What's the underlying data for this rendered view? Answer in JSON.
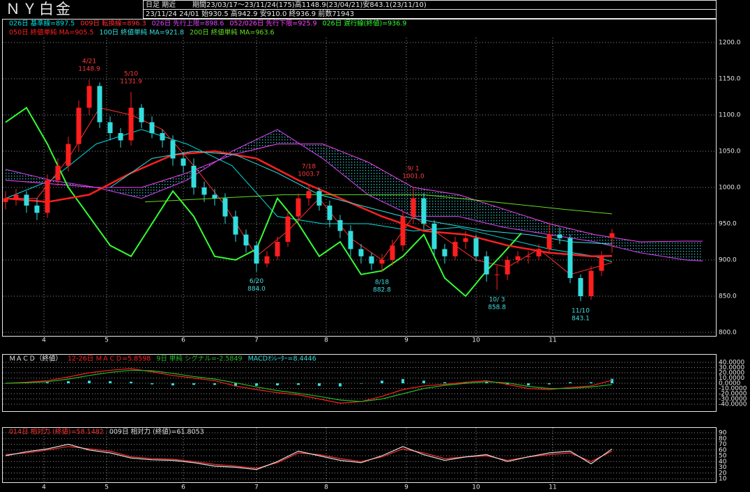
{
  "header": {
    "title": "ＮＹ白金",
    "line1a": "日足 期近",
    "line1b": "期間23/03/17～23/11/24(175)高1148.9(23/04/21)安843.1(23/11/10)",
    "line2": "23/11/24 24/01 始930.5 高942.9 安910.0 終936.9 前数71943"
  },
  "chart_data": [
    {
      "type": "candlestick",
      "x": [
        0,
        3,
        6,
        9,
        12,
        15,
        18,
        21,
        24,
        27,
        30,
        33,
        36,
        39,
        42,
        45,
        48,
        51,
        54,
        57,
        60,
        63,
        66,
        69,
        72,
        75,
        78,
        81,
        84,
        87,
        90,
        93,
        96,
        99,
        102,
        105,
        108,
        111,
        114,
        117,
        120,
        123,
        126,
        129,
        132,
        135,
        138,
        141,
        144,
        147,
        150,
        153,
        156,
        159,
        162,
        165,
        168,
        171,
        174
      ],
      "open": [
        980,
        985,
        990,
        975,
        965,
        1010,
        1030,
        1060,
        1110,
        1140,
        1090,
        1075,
        1065,
        1110,
        1090,
        1075,
        1065,
        1040,
        1030,
        1000,
        990,
        985,
        960,
        935,
        920,
        895,
        905,
        925,
        960,
        985,
        995,
        975,
        955,
        940,
        915,
        905,
        895,
        900,
        920,
        960,
        985,
        950,
        915,
        905,
        925,
        930,
        905,
        880,
        880,
        900,
        905,
        905,
        915,
        935,
        930,
        875,
        850,
        885,
        930.5
      ],
      "high": [
        995,
        998,
        995,
        985,
        1018,
        1040,
        1070,
        1120,
        1148.9,
        1145,
        1098,
        1082,
        1131.9,
        1115,
        1098,
        1080,
        1072,
        1048,
        1040,
        1008,
        998,
        992,
        968,
        942,
        926,
        912,
        932,
        968,
        992,
        1003.7,
        1000,
        982,
        962,
        948,
        922,
        910,
        908,
        928,
        968,
        1001.0,
        992,
        955,
        922,
        932,
        940,
        935,
        912,
        892,
        905,
        912,
        912,
        922,
        951.8,
        945,
        935,
        880,
        892,
        912,
        942.9
      ],
      "low": [
        970,
        975,
        965,
        955,
        958,
        1002,
        1022,
        1050,
        1100,
        1082,
        1065,
        1055,
        1058,
        1082,
        1068,
        1055,
        1030,
        1020,
        990,
        980,
        975,
        950,
        925,
        910,
        884.0,
        890,
        900,
        918,
        952,
        975,
        968,
        945,
        930,
        905,
        895,
        886,
        882.8,
        892,
        912,
        950,
        942,
        905,
        895,
        900,
        915,
        898,
        870,
        858.8,
        872,
        895,
        895,
        900,
        908,
        922,
        868,
        843.1,
        845,
        878,
        910.0
      ],
      "close": [
        985,
        990,
        975,
        965,
        1010,
        1030,
        1060,
        1110,
        1140,
        1090,
        1075,
        1065,
        1110,
        1090,
        1075,
        1065,
        1040,
        1030,
        1000,
        990,
        985,
        960,
        935,
        920,
        895,
        905,
        925,
        960,
        985,
        995,
        975,
        955,
        940,
        915,
        905,
        895,
        900,
        920,
        960,
        985,
        950,
        915,
        905,
        925,
        930,
        905,
        880,
        880,
        900,
        905,
        905,
        915,
        935,
        930,
        875,
        850,
        885,
        905,
        936.9
      ],
      "up_color": "#ff1e1e",
      "down_color": "#33dddd",
      "xlim": [
        0,
        204
      ],
      "ylim": [
        800,
        1200
      ],
      "yticks": [
        {
          "value": 1200,
          "label": "1200.0"
        },
        {
          "value": 1150,
          "label": "1150.0"
        },
        {
          "value": 1100,
          "label": "1100.0"
        },
        {
          "value": 1050,
          "label": "1050.0"
        },
        {
          "value": 1000,
          "label": "1000.0"
        },
        {
          "value": 950,
          "label": "950.0"
        },
        {
          "value": 900,
          "label": "900.0"
        },
        {
          "value": 850,
          "label": "850.0"
        },
        {
          "value": 800,
          "label": "800.0"
        }
      ],
      "xticks": [
        {
          "value": 11,
          "label": "4"
        },
        {
          "value": 29,
          "label": "5"
        },
        {
          "value": 51,
          "label": "6"
        },
        {
          "value": 72,
          "label": "7"
        },
        {
          "value": 92,
          "label": "8"
        },
        {
          "value": 115,
          "label": "9"
        },
        {
          "value": 135,
          "label": "10"
        },
        {
          "value": 157,
          "label": "11"
        }
      ],
      "grid": true,
      "cloud_color": "#33cccc",
      "series": [
        {
          "name": "026日 基準線=897.5",
          "color": "#00e0e0",
          "line_width": 1,
          "x": [
            0,
            13,
            26,
            39,
            52,
            65,
            78,
            91,
            104,
            117,
            130,
            143,
            156,
            169,
            174
          ],
          "values": [
            985,
            1010,
            1060,
            1080,
            1060,
            1030,
            960,
            950,
            950,
            940,
            945,
            930,
            915,
            905,
            897.5
          ]
        },
        {
          "name": "009日 転換線=896.3",
          "color": "#ff3030",
          "line_width": 1,
          "x": [
            0,
            9,
            18,
            27,
            36,
            45,
            54,
            63,
            72,
            81,
            90,
            99,
            108,
            117,
            126,
            135,
            144,
            153,
            162,
            174
          ],
          "values": [
            985,
            985,
            1040,
            1110,
            1100,
            1080,
            1030,
            975,
            905,
            940,
            985,
            930,
            900,
            960,
            930,
            900,
            890,
            915,
            880,
            896.3
          ]
        },
        {
          "name": "026日 先行上限=898.6",
          "color": "#dd44ff",
          "line_width": 1,
          "cloud": true,
          "x": [
            0,
            13,
            26,
            39,
            52,
            65,
            78,
            91,
            104,
            117,
            130,
            143,
            156,
            169,
            182,
            195,
            200
          ],
          "values": [
            1025,
            1010,
            1000,
            985,
            1010,
            1050,
            1080,
            1040,
            990,
            960,
            960,
            945,
            935,
            925,
            910,
            900,
            898.6
          ]
        },
        {
          "name": "052/026日 先行下限=925.9",
          "color": "#ff44ff",
          "line_width": 1,
          "cloud": true,
          "x": [
            0,
            13,
            26,
            39,
            52,
            65,
            78,
            91,
            104,
            117,
            130,
            143,
            156,
            169,
            182,
            195,
            200
          ],
          "values": [
            1010,
            1005,
            1000,
            1000,
            1020,
            1045,
            1060,
            1060,
            1035,
            1000,
            990,
            970,
            950,
            935,
            925,
            926,
            925.9
          ]
        },
        {
          "name": "026日 遅行線(終値)=936.9",
          "color": "#33ff33",
          "line_width": 2,
          "x": [
            0,
            6,
            12,
            18,
            24,
            30,
            36,
            42,
            48,
            54,
            60,
            66,
            72,
            78,
            84,
            90,
            96,
            102,
            108,
            114,
            120,
            126,
            132,
            138,
            142,
            148
          ],
          "values": [
            1090,
            1110,
            1060,
            1000,
            960,
            920,
            905,
            950,
            995,
            960,
            905,
            900,
            915,
            985,
            950,
            905,
            925,
            880,
            885,
            905,
            935,
            875,
            850,
            885,
            905,
            936.9
          ]
        },
        {
          "name": "050日 終値単純 MA=905.5",
          "color": "#ff2020",
          "line_width": 2.5,
          "x": [
            0,
            12,
            24,
            36,
            48,
            60,
            72,
            84,
            96,
            108,
            120,
            132,
            144,
            156,
            168,
            174
          ],
          "values": [
            985,
            980,
            990,
            1020,
            1045,
            1050,
            1040,
            1010,
            985,
            960,
            940,
            935,
            920,
            910,
            905,
            905.5
          ]
        },
        {
          "name": "100日 終値単純 MA=921.8",
          "color": "#33e0e0",
          "line_width": 1,
          "x": [
            30,
            42,
            54,
            66,
            78,
            90,
            102,
            114,
            126,
            138,
            150,
            162,
            174
          ],
          "values": [
            1000,
            1040,
            1050,
            1045,
            1020,
            990,
            975,
            960,
            950,
            940,
            935,
            925,
            921.8
          ]
        },
        {
          "name": "200日 終値単純 MA=963.6",
          "color": "#66dd22",
          "line_width": 1,
          "x": [
            40,
            60,
            80,
            100,
            120,
            140,
            160,
            174
          ],
          "values": [
            980,
            985,
            990,
            990,
            990,
            980,
            970,
            963.6
          ]
        }
      ],
      "annotations": [
        {
          "date": "4/21",
          "value": 1148.9,
          "x": 24,
          "position": "above",
          "color": "#ff3a3a"
        },
        {
          "date": "5/10",
          "value": 1131.9,
          "x": 36,
          "position": "above",
          "color": "#ff3a3a"
        },
        {
          "date": "6/20",
          "value": 884,
          "value_label": "884.0",
          "x": 72,
          "position": "below",
          "color": "#40e0e0"
        },
        {
          "date": "7/18",
          "value": 1003.7,
          "x": 87,
          "position": "above",
          "color": "#ff3a3a"
        },
        {
          "date": "8/18",
          "value": 882.8,
          "x": 108,
          "position": "below",
          "color": "#40e0e0"
        },
        {
          "date": "9/ 1",
          "value": 1001,
          "value_label": "1001.0",
          "x": 117,
          "position": "above",
          "color": "#ff3a3a"
        },
        {
          "date": "10/ 3",
          "value": 858.8,
          "x": 141,
          "position": "below",
          "color": "#40e0e0"
        },
        {
          "date": "11/10",
          "value": 843.1,
          "x": 165,
          "position": "below",
          "color": "#40e0e0"
        }
      ]
    },
    {
      "type": "macd",
      "title": "ＭＡＣＤ（終値）",
      "x": [
        0,
        6,
        12,
        18,
        24,
        30,
        36,
        42,
        48,
        54,
        60,
        66,
        72,
        78,
        84,
        90,
        96,
        102,
        108,
        114,
        120,
        126,
        132,
        138,
        144,
        150,
        156,
        162,
        168,
        174
      ],
      "xlim": [
        0,
        204
      ],
      "ylim": [
        -40,
        40
      ],
      "yticks": [
        {
          "value": 40,
          "label": "40.0000"
        },
        {
          "value": 30,
          "label": "30.0000"
        },
        {
          "value": 20,
          "label": "20.0000"
        },
        {
          "value": 10,
          "label": "10.0000"
        },
        {
          "value": 0,
          "label": "0.0000"
        },
        {
          "value": -10,
          "label": "-10.0000"
        },
        {
          "value": -20,
          "label": "-20.0000"
        },
        {
          "value": -30,
          "label": "-30.0000"
        },
        {
          "value": -40,
          "label": "-40.0000"
        }
      ],
      "grid": true,
      "series": [
        {
          "name": "12-26日 ＭＡＣＤ=5.8598",
          "color": "#ff2020",
          "values": [
            0,
            2,
            5,
            12,
            20,
            25,
            28,
            22,
            15,
            10,
            5,
            -5,
            -12,
            -18,
            -22,
            -30,
            -38,
            -35,
            -25,
            -12,
            -5,
            -2,
            2,
            5,
            -2,
            -10,
            -12,
            -8,
            -5,
            5.8598
          ]
        },
        {
          "name": "9日 単純 シグナル=-2.5849",
          "color": "#22bb22",
          "values": [
            0,
            1,
            3,
            8,
            15,
            21,
            25,
            24,
            19,
            13,
            8,
            1,
            -7,
            -14,
            -19,
            -25,
            -32,
            -35,
            -30,
            -20,
            -10,
            -4,
            0,
            3,
            1,
            -6,
            -10,
            -10,
            -7,
            -2.5849
          ]
        },
        {
          "name": "MACDｵｼﾚｰﾀｰ=8.4446",
          "color": "#33dddd",
          "style": "bar",
          "values": [
            0,
            1,
            2,
            4,
            5,
            4,
            3,
            -2,
            -4,
            -3,
            -3,
            -6,
            -5,
            -4,
            -3,
            -5,
            -6,
            0,
            5,
            8,
            5,
            2,
            2,
            2,
            -3,
            -4,
            -2,
            2,
            2,
            8.4446
          ]
        }
      ]
    },
    {
      "type": "line",
      "x": [
        0,
        6,
        12,
        18,
        24,
        30,
        36,
        42,
        48,
        54,
        60,
        66,
        72,
        78,
        84,
        90,
        96,
        102,
        108,
        114,
        120,
        126,
        132,
        138,
        144,
        150,
        156,
        162,
        168,
        174
      ],
      "xlim": [
        0,
        204
      ],
      "ylim": [
        10,
        90
      ],
      "yticks": [
        90,
        80,
        70,
        60,
        50,
        40,
        30,
        20,
        10
      ],
      "xticks": [
        {
          "value": 11,
          "label": "4"
        },
        {
          "value": 29,
          "label": "5"
        },
        {
          "value": 51,
          "label": "6"
        },
        {
          "value": 72,
          "label": "7"
        },
        {
          "value": 92,
          "label": "8"
        },
        {
          "value": 115,
          "label": "9"
        },
        {
          "value": 135,
          "label": "10"
        },
        {
          "value": 157,
          "label": "11"
        }
      ],
      "grid": true,
      "series": [
        {
          "name": "014日 相対力 (終値)=58.1482",
          "color": "#ff3030",
          "values": [
            52,
            55,
            60,
            66,
            62,
            58,
            48,
            45,
            44,
            40,
            35,
            32,
            28,
            38,
            55,
            52,
            45,
            40,
            48,
            62,
            55,
            45,
            48,
            50,
            42,
            48,
            52,
            55,
            40,
            58.1482
          ]
        },
        {
          "name": "009日 相対力 (終値)=61.8053",
          "color": "#dddddd",
          "values": [
            50,
            57,
            62,
            70,
            60,
            55,
            46,
            43,
            42,
            38,
            32,
            30,
            26,
            40,
            58,
            50,
            42,
            38,
            50,
            66,
            52,
            42,
            48,
            52,
            40,
            48,
            55,
            58,
            36,
            61.8053
          ]
        }
      ]
    }
  ]
}
